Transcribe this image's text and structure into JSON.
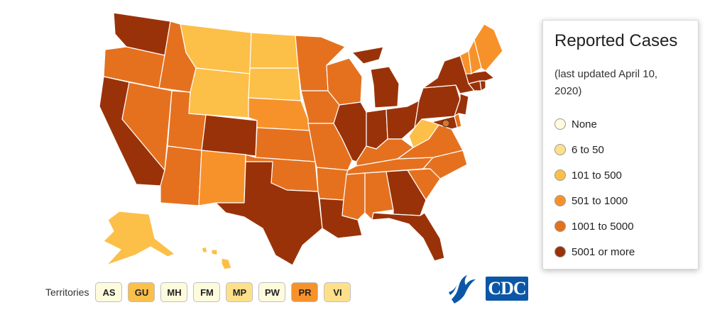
{
  "legend": {
    "title": "Reported Cases",
    "subtitle": "(last updated April 10, 2020)",
    "items": [
      {
        "label": "None",
        "color": "#fefbdc"
      },
      {
        "label": "6 to 50",
        "color": "#fee08b"
      },
      {
        "label": "101 to 500",
        "color": "#fcbf48"
      },
      {
        "label": "501 to 1000",
        "color": "#f7922a"
      },
      {
        "label": "1001 to 5000",
        "color": "#e5711f"
      },
      {
        "label": "5001 or more",
        "color": "#9a3209"
      }
    ]
  },
  "territories": {
    "label": "Territories",
    "items": [
      {
        "code": "AS",
        "color": "#fefbdc"
      },
      {
        "code": "GU",
        "color": "#fcbf48"
      },
      {
        "code": "MH",
        "color": "#fefbdc"
      },
      {
        "code": "FM",
        "color": "#fefbdc"
      },
      {
        "code": "MP",
        "color": "#fee08b"
      },
      {
        "code": "PW",
        "color": "#fefbdc"
      },
      {
        "code": "PR",
        "color": "#f7922a"
      },
      {
        "code": "VI",
        "color": "#fee08b"
      }
    ]
  },
  "logos": {
    "hhs": "hhs-eagle-icon",
    "cdc": "CDC"
  },
  "map_data": {
    "scale_colors": {
      "c2": "#fcbf48",
      "c3": "#f7922a",
      "c4": "#e5711f",
      "c5": "#9a3209"
    },
    "states": [
      {
        "id": "WA",
        "level": "c5"
      },
      {
        "id": "OR",
        "level": "c4"
      },
      {
        "id": "CA",
        "level": "c5"
      },
      {
        "id": "ID",
        "level": "c4"
      },
      {
        "id": "NV",
        "level": "c4"
      },
      {
        "id": "AZ",
        "level": "c4"
      },
      {
        "id": "UT",
        "level": "c4"
      },
      {
        "id": "MT",
        "level": "c2"
      },
      {
        "id": "WY",
        "level": "c2"
      },
      {
        "id": "CO",
        "level": "c5"
      },
      {
        "id": "NM",
        "level": "c3"
      },
      {
        "id": "ND",
        "level": "c2"
      },
      {
        "id": "SD",
        "level": "c2"
      },
      {
        "id": "NE",
        "level": "c3"
      },
      {
        "id": "KS",
        "level": "c4"
      },
      {
        "id": "OK",
        "level": "c4"
      },
      {
        "id": "TX",
        "level": "c5"
      },
      {
        "id": "MN",
        "level": "c4"
      },
      {
        "id": "IA",
        "level": "c4"
      },
      {
        "id": "MO",
        "level": "c4"
      },
      {
        "id": "AR",
        "level": "c4"
      },
      {
        "id": "LA",
        "level": "c5"
      },
      {
        "id": "WI",
        "level": "c4"
      },
      {
        "id": "IL",
        "level": "c5"
      },
      {
        "id": "MI",
        "level": "c5"
      },
      {
        "id": "IN",
        "level": "c5"
      },
      {
        "id": "OH",
        "level": "c5"
      },
      {
        "id": "KY",
        "level": "c4"
      },
      {
        "id": "TN",
        "level": "c4"
      },
      {
        "id": "MS",
        "level": "c4"
      },
      {
        "id": "AL",
        "level": "c4"
      },
      {
        "id": "GA",
        "level": "c5"
      },
      {
        "id": "FL",
        "level": "c5"
      },
      {
        "id": "SC",
        "level": "c4"
      },
      {
        "id": "NC",
        "level": "c4"
      },
      {
        "id": "VA",
        "level": "c4"
      },
      {
        "id": "WV",
        "level": "c2"
      },
      {
        "id": "PA",
        "level": "c5"
      },
      {
        "id": "NY",
        "level": "c5"
      },
      {
        "id": "NJ",
        "level": "c5"
      },
      {
        "id": "DE",
        "level": "c4"
      },
      {
        "id": "MD",
        "level": "c5"
      },
      {
        "id": "DC",
        "level": "c4"
      },
      {
        "id": "CT",
        "level": "c5"
      },
      {
        "id": "RI",
        "level": "c5"
      },
      {
        "id": "MA",
        "level": "c5"
      },
      {
        "id": "VT",
        "level": "c3"
      },
      {
        "id": "NH",
        "level": "c3"
      },
      {
        "id": "ME",
        "level": "c3"
      },
      {
        "id": "AK",
        "level": "c2"
      },
      {
        "id": "HI",
        "level": "c2"
      }
    ]
  }
}
